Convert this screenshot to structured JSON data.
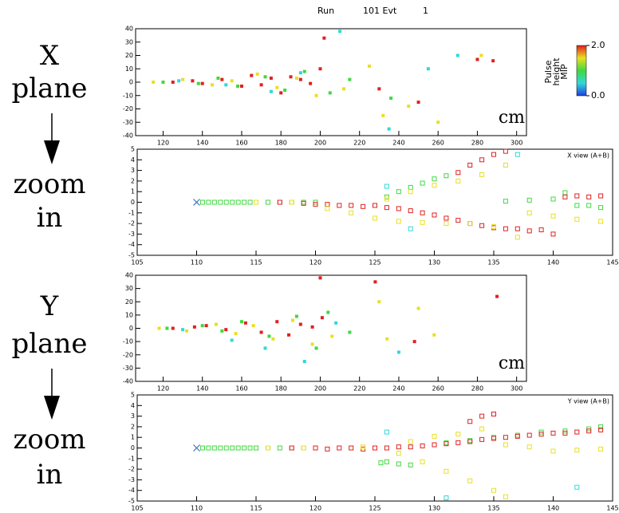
{
  "header": [
    "Run",
    "101 Evt",
    "1"
  ],
  "side_labels": [
    [
      "X",
      "plane"
    ],
    [
      "zoom",
      "in"
    ],
    [
      "Y",
      "plane"
    ],
    [
      "zoom",
      "in"
    ]
  ],
  "chart_data": [
    {
      "type": "scatter",
      "xlim": [
        106,
        305
      ],
      "ylim": [
        -40,
        40
      ],
      "xticks": [
        120,
        140,
        160,
        180,
        200,
        220,
        240,
        260,
        280,
        300
      ],
      "yticks": [
        -40,
        -30,
        -20,
        -10,
        0,
        10,
        20,
        30,
        40
      ],
      "x_unit": "cm",
      "colorbar": {
        "label": [
          "Pulse",
          "height",
          "MIP"
        ],
        "colors": [
          "#e02020",
          "#e8e020",
          "#40d840",
          "#30d8d8",
          "#2040e0"
        ],
        "ticks": [
          {
            "value": 0,
            "label": "0.0"
          },
          {
            "value": 2,
            "label": "2.0"
          }
        ],
        "lim": [
          0,
          2
        ]
      },
      "series": [
        {
          "color": "#e02020",
          "x": [
            125,
            135,
            140,
            150,
            160,
            165,
            170,
            175,
            180,
            185,
            190,
            195,
            200,
            202,
            230,
            250,
            280,
            288
          ],
          "y": [
            0,
            1,
            -1,
            2,
            -3,
            5,
            -2,
            3,
            -8,
            4,
            2,
            -1,
            10,
            33,
            -5,
            -15,
            17,
            16
          ]
        },
        {
          "color": "#e8e020",
          "x": [
            115,
            130,
            145,
            155,
            168,
            178,
            188,
            198,
            212,
            225,
            232,
            245,
            260,
            282
          ],
          "y": [
            0,
            2,
            -2,
            1,
            6,
            -4,
            3,
            -10,
            -5,
            12,
            -25,
            -18,
            -30,
            20
          ]
        },
        {
          "color": "#40d840",
          "x": [
            120,
            138,
            148,
            158,
            172,
            182,
            192,
            205,
            215,
            236
          ],
          "y": [
            0,
            -1,
            3,
            -3,
            4,
            -6,
            8,
            -8,
            2,
            -12
          ]
        },
        {
          "color": "#30d8d8",
          "x": [
            128,
            152,
            175,
            190,
            210,
            255,
            270,
            235
          ],
          "y": [
            1,
            -2,
            -7,
            7,
            38,
            10,
            20,
            -35
          ]
        }
      ]
    },
    {
      "type": "scatter",
      "xlim": [
        105,
        145
      ],
      "ylim": [
        -5,
        5
      ],
      "xticks": [
        105,
        110,
        115,
        120,
        125,
        130,
        135,
        140,
        145
      ],
      "yticks": [
        -5,
        -4,
        -3,
        -2,
        -1,
        0,
        1,
        2,
        3,
        4,
        5
      ],
      "view_label": "X view (A+B)",
      "series": [
        {
          "color": "#40d840",
          "x": [
            110.5,
            111,
            111.5,
            112,
            112.5,
            113,
            113.5,
            114,
            114.5,
            115,
            116,
            117,
            118,
            119,
            120,
            126,
            127,
            128,
            129,
            130,
            131,
            136,
            138,
            140,
            141,
            142,
            143,
            144
          ],
          "y": [
            0,
            0,
            0,
            0,
            0,
            0,
            0,
            0,
            0,
            0,
            0,
            0,
            0,
            0,
            0,
            0.5,
            1,
            1.4,
            1.8,
            2.2,
            2.5,
            0.1,
            0.2,
            0.3,
            0.9,
            -0.3,
            -0.3,
            -0.5
          ]
        },
        {
          "color": "#e02020",
          "x": [
            117,
            119,
            120,
            121,
            122,
            123,
            124,
            125,
            126,
            127,
            128,
            129,
            130,
            131,
            132,
            133,
            134,
            135,
            136,
            137,
            138,
            139,
            140,
            141,
            142,
            143,
            144,
            132,
            133,
            134,
            135,
            136
          ],
          "y": [
            0,
            -0.1,
            -0.2,
            -0.2,
            -0.3,
            -0.3,
            -0.4,
            -0.3,
            -0.5,
            -0.6,
            -0.8,
            -1,
            -1.2,
            -1.5,
            -1.7,
            -2,
            -2.2,
            -2.4,
            -2.5,
            -2.5,
            -2.7,
            -2.6,
            -3,
            0.5,
            0.6,
            0.5,
            0.6,
            2.8,
            3.5,
            4,
            4.5,
            4.8
          ]
        },
        {
          "color": "#e8e020",
          "x": [
            115,
            118,
            121,
            123,
            125,
            127,
            129,
            131,
            133,
            135,
            137,
            126,
            128,
            130,
            132,
            134,
            136,
            138,
            140,
            142,
            144
          ],
          "y": [
            0,
            0,
            -0.6,
            -1,
            -1.5,
            -1.8,
            -1.9,
            -2,
            -2,
            -2.3,
            -3.3,
            0.3,
            1,
            1.6,
            2,
            2.6,
            3.5,
            -1,
            -1.3,
            -1.6,
            -1.8
          ]
        },
        {
          "color": "#30d8d8",
          "x": [
            126,
            128,
            137
          ],
          "y": [
            1.5,
            -2.5,
            4.5
          ]
        },
        {
          "color": "#4070c0",
          "marker": "x",
          "x": [
            110
          ],
          "y": [
            0
          ]
        }
      ]
    },
    {
      "type": "scatter",
      "xlim": [
        106,
        305
      ],
      "ylim": [
        -40,
        40
      ],
      "xticks": [
        120,
        140,
        160,
        180,
        200,
        220,
        240,
        260,
        280,
        300
      ],
      "yticks": [
        -40,
        -30,
        -20,
        -10,
        0,
        10,
        20,
        30,
        40
      ],
      "x_unit": "cm",
      "series": [
        {
          "color": "#e02020",
          "x": [
            125,
            136,
            142,
            152,
            162,
            170,
            178,
            184,
            190,
            196,
            200,
            201,
            228,
            248,
            290
          ],
          "y": [
            0,
            1,
            2,
            -1,
            4,
            -3,
            5,
            -5,
            3,
            1,
            38,
            8,
            35,
            -10,
            24
          ]
        },
        {
          "color": "#e8e020",
          "x": [
            118,
            132,
            147,
            157,
            166,
            176,
            186,
            196,
            206,
            230,
            234,
            250,
            258
          ],
          "y": [
            0,
            -2,
            3,
            -4,
            2,
            -8,
            6,
            -12,
            -6,
            20,
            -8,
            15,
            -5
          ]
        },
        {
          "color": "#40d840",
          "x": [
            122,
            140,
            150,
            160,
            174,
            188,
            198,
            204,
            215
          ],
          "y": [
            0,
            2,
            -2,
            5,
            -6,
            9,
            -15,
            12,
            -3
          ]
        },
        {
          "color": "#30d8d8",
          "x": [
            130,
            155,
            172,
            192,
            208,
            240
          ],
          "y": [
            -1,
            -9,
            -15,
            -25,
            4,
            -18
          ]
        }
      ]
    },
    {
      "type": "scatter",
      "xlim": [
        105,
        145
      ],
      "ylim": [
        -5,
        5
      ],
      "xticks": [
        105,
        110,
        115,
        120,
        125,
        130,
        135,
        140,
        145
      ],
      "yticks": [
        -5,
        -4,
        -3,
        -2,
        -1,
        0,
        1,
        2,
        3,
        4,
        5
      ],
      "view_label": "Y view (A+B)",
      "series": [
        {
          "color": "#40d840",
          "x": [
            110.5,
            111,
            111.5,
            112,
            112.5,
            113,
            113.5,
            114,
            114.5,
            115,
            116,
            117,
            118,
            119,
            125.5,
            126,
            127,
            128,
            131,
            133,
            135,
            137,
            139,
            141,
            143,
            144
          ],
          "y": [
            0,
            0,
            0,
            0,
            0,
            0,
            0,
            0,
            0,
            0,
            0,
            0,
            0,
            0,
            -1.4,
            -1.3,
            -1.5,
            -1.6,
            0.5,
            0.7,
            1,
            1.2,
            1.5,
            1.6,
            1.8,
            2
          ]
        },
        {
          "color": "#e02020",
          "x": [
            118,
            120,
            121,
            122,
            123,
            124,
            125,
            126,
            127,
            128,
            129,
            130,
            131,
            132,
            133,
            134,
            135,
            136,
            137,
            138,
            139,
            140,
            141,
            142,
            143,
            144,
            133,
            134,
            135
          ],
          "y": [
            0,
            0,
            -0.1,
            0,
            0,
            -0.1,
            0,
            0,
            0.1,
            0.1,
            0.2,
            0.3,
            0.4,
            0.5,
            0.6,
            0.8,
            0.9,
            1,
            1.1,
            1.2,
            1.3,
            1.4,
            1.4,
            1.5,
            1.6,
            1.7,
            2.5,
            3,
            3.2
          ]
        },
        {
          "color": "#e8e020",
          "x": [
            116,
            119,
            124,
            127,
            129,
            131,
            133,
            135,
            136,
            128,
            130,
            132,
            134,
            136,
            138,
            140,
            142,
            144
          ],
          "y": [
            0,
            0,
            0.1,
            -0.5,
            -1.3,
            -2.2,
            -3.1,
            -4,
            -4.6,
            0.6,
            1.1,
            1.3,
            1.8,
            0.3,
            0.1,
            -0.3,
            -0.2,
            -0.1
          ]
        },
        {
          "color": "#30d8d8",
          "x": [
            126,
            131,
            142
          ],
          "y": [
            1.5,
            -4.7,
            -3.7
          ]
        },
        {
          "color": "#4070c0",
          "marker": "x",
          "x": [
            110
          ],
          "y": [
            0
          ]
        }
      ]
    }
  ]
}
